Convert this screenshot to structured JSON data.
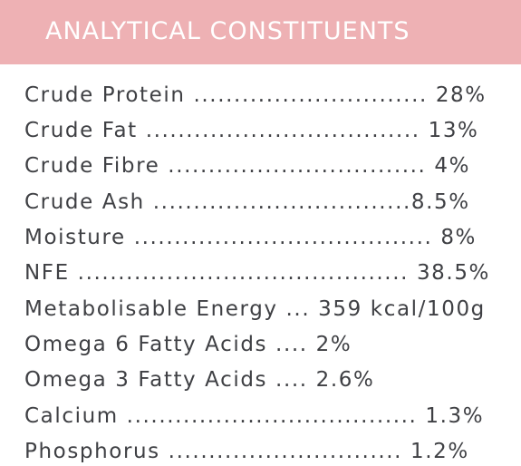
{
  "header": {
    "title": "ANALYTICAL CONSTITUENTS",
    "background": "#eeb1b4"
  },
  "rows": [
    {
      "text": "Crude Protein ............................. 28%"
    },
    {
      "text": "Crude Fat .................................. 13%"
    },
    {
      "text": "Crude Fibre ................................ 4%"
    },
    {
      "text": "Crude Ash ................................8.5%"
    },
    {
      "text": "Moisture ..................................... 8%"
    },
    {
      "text": "NFE ......................................... 38.5%"
    },
    {
      "text": "Metabolisable Energy ... 359 kcal/100g"
    },
    {
      "text": "Omega 6 Fatty Acids .... 2%"
    },
    {
      "text": "Omega 3 Fatty Acids .... 2.6%"
    },
    {
      "text": "Calcium .................................... 1.3%"
    },
    {
      "text": "Phosphorus ............................. 1.2%"
    }
  ]
}
